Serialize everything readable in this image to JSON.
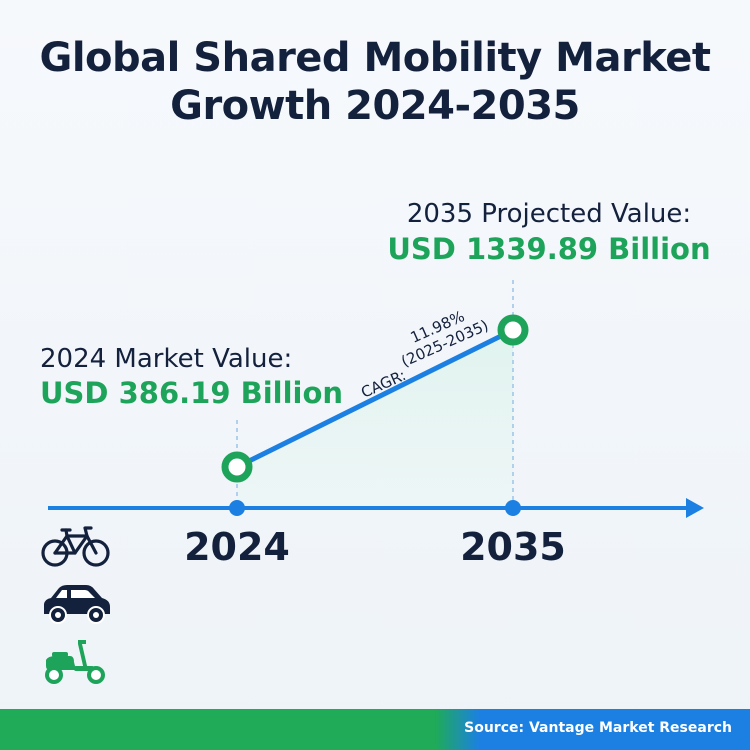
{
  "title": {
    "line1": "Global Shared Mobility Market",
    "line2": "Growth 2024-2035"
  },
  "colors": {
    "navy": "#14213d",
    "green": "#1ea45a",
    "blue": "#1c80e3",
    "area_fill": "#e3f4ef"
  },
  "chart_data": {
    "type": "line",
    "title": "Global Shared Mobility Market Growth 2024-2035",
    "x": [
      2024,
      2035
    ],
    "values": [
      386.19,
      1339.89
    ],
    "unit": "USD Billion",
    "tick_labels": [
      "2024",
      "2035"
    ],
    "start_callout": {
      "label": "2024 Market Value:",
      "value": "USD 386.19 Billion"
    },
    "end_callout": {
      "label": "2035 Projected Value:",
      "value": "USD 1339.89 Billion"
    },
    "cagr": {
      "prefix": "CAGR:",
      "rate": "11.98%",
      "period": "(2025-2035)"
    },
    "legend": "none",
    "grid": false
  },
  "icons": [
    "bicycle-icon",
    "car-icon",
    "scooter-icon"
  ],
  "footer": {
    "source": "Source: Vantage Market Research"
  }
}
